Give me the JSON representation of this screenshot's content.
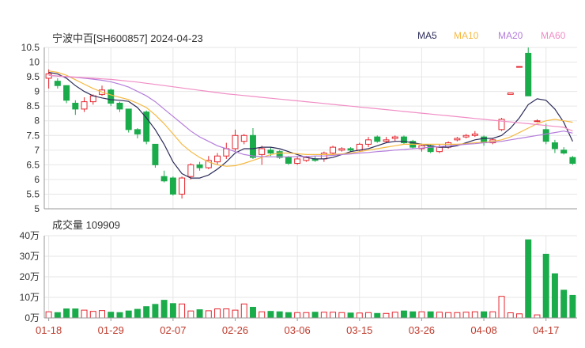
{
  "header": {
    "title": "宁波中百[SH600857] 2024-04-23"
  },
  "legend": [
    {
      "label": "MA5",
      "color": "#2c2c5a"
    },
    {
      "label": "MA10",
      "color": "#f5b942"
    },
    {
      "label": "MA20",
      "color": "#b57edc"
    },
    {
      "label": "MA60",
      "color": "#f08dc4"
    }
  ],
  "volume_panel": {
    "label": "成交量 109909"
  },
  "colors": {
    "up": "#e5262e",
    "down": "#1aab4b",
    "grid": "#e6e6e6",
    "axis": "#999999"
  },
  "chart_data": [
    {
      "type": "candlestick",
      "title": "宁波中百[SH600857] 2024-04-23",
      "ylim": [
        5,
        10.5
      ],
      "yticks": [
        "10.5",
        "10",
        "9.5",
        "9",
        "8.5",
        "8",
        "7.5",
        "7",
        "6.5",
        "6",
        "5.5",
        "5"
      ],
      "xticks": [
        {
          "index": 0,
          "label": "01-18"
        },
        {
          "index": 7,
          "label": "01-29"
        },
        {
          "index": 14,
          "label": "02-07"
        },
        {
          "index": 21,
          "label": "02-26"
        },
        {
          "index": 28,
          "label": "03-06"
        },
        {
          "index": 35,
          "label": "03-15"
        },
        {
          "index": 42,
          "label": "03-26"
        },
        {
          "index": 49,
          "label": "04-08"
        },
        {
          "index": 56,
          "label": "04-17"
        }
      ],
      "candles": [
        [
          9.45,
          9.6,
          9.75,
          9.1
        ],
        [
          9.35,
          9.2,
          9.45,
          9.1
        ],
        [
          9.2,
          8.7,
          9.2,
          8.6
        ],
        [
          8.6,
          8.4,
          8.7,
          8.2
        ],
        [
          8.4,
          8.65,
          8.8,
          8.3
        ],
        [
          8.65,
          8.85,
          8.9,
          8.55
        ],
        [
          8.9,
          9.05,
          9.2,
          8.85
        ],
        [
          9.05,
          8.6,
          9.1,
          8.5
        ],
        [
          8.6,
          8.4,
          8.65,
          8.3
        ],
        [
          8.4,
          7.7,
          8.4,
          7.6
        ],
        [
          7.7,
          7.55,
          7.75,
          7.4
        ],
        [
          8.3,
          7.3,
          8.35,
          7.2
        ],
        [
          7.2,
          6.5,
          7.2,
          6.4
        ],
        [
          6.1,
          5.95,
          6.3,
          5.9
        ],
        [
          6.05,
          5.5,
          6.1,
          5.45
        ],
        [
          5.5,
          6.05,
          6.1,
          5.35
        ],
        [
          6.1,
          6.5,
          6.55,
          6.0
        ],
        [
          6.5,
          6.4,
          6.6,
          6.3
        ],
        [
          6.4,
          6.65,
          6.8,
          6.35
        ],
        [
          6.6,
          6.8,
          6.9,
          6.5
        ],
        [
          6.8,
          7.05,
          7.25,
          6.7
        ],
        [
          7.05,
          7.5,
          7.7,
          6.95
        ],
        [
          7.3,
          7.5,
          7.55,
          7.2
        ],
        [
          7.5,
          6.75,
          7.75,
          6.7
        ],
        [
          6.85,
          7.05,
          7.15,
          6.5
        ],
        [
          7.0,
          6.9,
          7.1,
          6.8
        ],
        [
          6.95,
          6.75,
          7.0,
          6.7
        ],
        [
          6.75,
          6.55,
          6.8,
          6.5
        ],
        [
          6.55,
          6.7,
          6.8,
          6.5
        ],
        [
          6.65,
          6.75,
          6.8,
          6.6
        ],
        [
          6.7,
          6.65,
          6.8,
          6.6
        ],
        [
          6.7,
          6.9,
          6.95,
          6.6
        ],
        [
          6.9,
          7.1,
          7.15,
          6.85
        ],
        [
          7.0,
          7.05,
          7.1,
          6.95
        ],
        [
          7.05,
          7.0,
          7.1,
          6.95
        ],
        [
          7.0,
          7.2,
          7.25,
          6.95
        ],
        [
          7.2,
          7.35,
          7.45,
          7.1
        ],
        [
          7.45,
          7.3,
          7.5,
          7.25
        ],
        [
          7.3,
          7.35,
          7.45,
          7.25
        ],
        [
          7.4,
          7.45,
          7.5,
          7.3
        ],
        [
          7.45,
          7.25,
          7.5,
          7.2
        ],
        [
          7.3,
          7.1,
          7.35,
          7.05
        ],
        [
          7.05,
          7.15,
          7.2,
          6.95
        ],
        [
          7.15,
          6.95,
          7.2,
          6.9
        ],
        [
          6.95,
          7.1,
          7.2,
          6.9
        ],
        [
          7.1,
          7.25,
          7.3,
          7.05
        ],
        [
          7.35,
          7.4,
          7.45,
          7.3
        ],
        [
          7.45,
          7.5,
          7.55,
          7.4
        ],
        [
          7.5,
          7.55,
          7.65,
          7.45
        ],
        [
          7.45,
          7.25,
          7.5,
          7.15
        ],
        [
          7.25,
          7.35,
          7.4,
          7.2
        ],
        [
          7.7,
          8.05,
          8.1,
          7.65
        ],
        [
          8.9,
          8.95,
          8.95,
          8.9
        ],
        [
          9.85,
          9.85,
          9.85,
          9.85
        ],
        [
          10.3,
          8.85,
          10.5,
          8.85
        ],
        [
          8.0,
          8.0,
          8.05,
          7.95
        ],
        [
          7.7,
          7.3,
          7.9,
          7.2
        ],
        [
          7.25,
          7.05,
          7.35,
          6.9
        ],
        [
          7.0,
          6.9,
          7.1,
          6.85
        ],
        [
          6.75,
          6.55,
          6.8,
          6.5
        ]
      ],
      "ma5": [
        9.65,
        9.6,
        9.45,
        9.2,
        9.0,
        8.85,
        8.78,
        8.72,
        8.7,
        8.66,
        8.45,
        8.1,
        7.7,
        7.2,
        6.6,
        6.2,
        6.05,
        6.05,
        6.15,
        6.35,
        6.6,
        6.9,
        7.05,
        7.05,
        7.1,
        7.1,
        7.05,
        6.95,
        6.85,
        6.75,
        6.7,
        6.7,
        6.75,
        6.85,
        6.95,
        7.0,
        7.05,
        7.15,
        7.25,
        7.3,
        7.3,
        7.25,
        7.2,
        7.15,
        7.1,
        7.1,
        7.15,
        7.25,
        7.35,
        7.4,
        7.4,
        7.5,
        7.75,
        8.1,
        8.55,
        8.75,
        8.7,
        8.4,
        7.95,
        7.3
      ],
      "ma10": [
        9.7,
        9.65,
        9.55,
        9.4,
        9.25,
        9.1,
        8.98,
        8.88,
        8.8,
        8.72,
        8.6,
        8.45,
        8.2,
        7.9,
        7.55,
        7.2,
        6.95,
        6.75,
        6.6,
        6.5,
        6.45,
        6.47,
        6.55,
        6.65,
        6.75,
        6.85,
        6.9,
        6.9,
        6.88,
        6.85,
        6.85,
        6.85,
        6.85,
        6.87,
        6.9,
        6.95,
        7.0,
        7.05,
        7.1,
        7.15,
        7.2,
        7.2,
        7.2,
        7.2,
        7.2,
        7.2,
        7.2,
        7.22,
        7.25,
        7.27,
        7.3,
        7.35,
        7.45,
        7.6,
        7.75,
        7.9,
        8.0,
        8.05,
        8.0,
        7.95
      ],
      "ma20": [
        9.55,
        9.52,
        9.5,
        9.48,
        9.45,
        9.42,
        9.38,
        9.33,
        9.25,
        9.15,
        9.0,
        8.85,
        8.65,
        8.4,
        8.15,
        7.9,
        7.65,
        7.45,
        7.3,
        7.15,
        7.05,
        6.95,
        6.85,
        6.8,
        6.78,
        6.77,
        6.77,
        6.77,
        6.78,
        6.78,
        6.8,
        6.8,
        6.82,
        6.85,
        6.87,
        6.9,
        6.92,
        6.95,
        6.97,
        7.0,
        7.02,
        7.05,
        7.07,
        7.1,
        7.12,
        7.15,
        7.17,
        7.2,
        7.22,
        7.25,
        7.27,
        7.3,
        7.35,
        7.4,
        7.45,
        7.5,
        7.55,
        7.6,
        7.65,
        7.58
      ],
      "ma60": [
        9.55,
        9.53,
        9.51,
        9.49,
        9.47,
        9.45,
        9.43,
        9.41,
        9.38,
        9.35,
        9.32,
        9.28,
        9.24,
        9.2,
        9.16,
        9.12,
        9.08,
        9.04,
        9.0,
        8.96,
        8.92,
        8.89,
        8.86,
        8.83,
        8.8,
        8.77,
        8.74,
        8.71,
        8.68,
        8.65,
        8.62,
        8.59,
        8.56,
        8.53,
        8.5,
        8.47,
        8.44,
        8.41,
        8.38,
        8.35,
        8.32,
        8.29,
        8.26,
        8.23,
        8.2,
        8.17,
        8.14,
        8.11,
        8.08,
        8.05,
        8.02,
        7.99,
        7.96,
        7.93,
        7.9,
        7.87,
        7.84,
        7.81,
        7.78,
        7.65
      ]
    },
    {
      "type": "bar",
      "title": "成交量 109909",
      "ylim": [
        0,
        400000
      ],
      "yticks": [
        "40万",
        "30万",
        "20万",
        "10万",
        "0万"
      ],
      "values": [
        30000,
        26000,
        44000,
        44000,
        38000,
        32000,
        36000,
        28000,
        26000,
        34000,
        42000,
        55000,
        66000,
        86000,
        70000,
        68000,
        34000,
        40000,
        35000,
        44000,
        44000,
        38000,
        68000,
        52000,
        30000,
        32000,
        30000,
        26000,
        26000,
        26000,
        28000,
        28000,
        28000,
        26000,
        24000,
        24000,
        26000,
        22000,
        22000,
        28000,
        34000,
        30000,
        30000,
        30000,
        28000,
        26000,
        26000,
        28000,
        30000,
        30000,
        30000,
        105000,
        25000,
        20000,
        380000,
        15000,
        310000,
        215000,
        135000,
        109909
      ]
    }
  ]
}
